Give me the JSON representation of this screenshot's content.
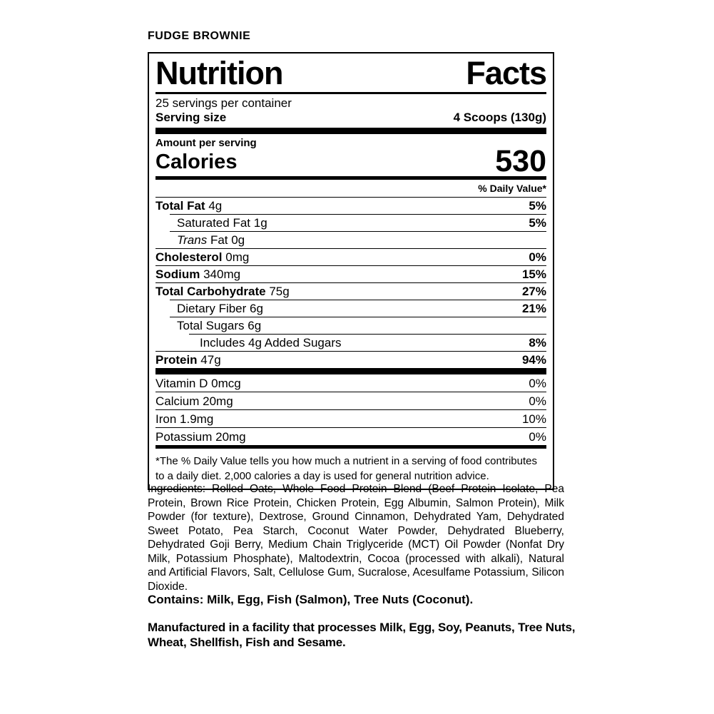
{
  "product_title": "FUDGE BROWNIE",
  "label": {
    "title": "Nutrition Facts",
    "servings_per_container": "25 servings per container",
    "serving_size_label": "Serving size",
    "serving_size_value": "4 Scoops (130g)",
    "amount_per_serving": "Amount per serving",
    "calories_label": "Calories",
    "calories_value": "530",
    "daily_value_header": "% Daily Value*",
    "nutrients": [
      {
        "name": "Total Fat",
        "amount": "4g",
        "dv": "5%"
      },
      {
        "name": "Saturated Fat",
        "amount": "1g",
        "dv": "5%"
      },
      {
        "name": "Trans",
        "amount": "Fat 0g",
        "dv": ""
      },
      {
        "name": "Cholesterol",
        "amount": "0mg",
        "dv": "0%"
      },
      {
        "name": "Sodium",
        "amount": "340mg",
        "dv": "15%"
      },
      {
        "name": "Total Carbohydrate",
        "amount": "75g",
        "dv": "27%"
      },
      {
        "name": "Dietary Fiber",
        "amount": "6g",
        "dv": "21%"
      },
      {
        "name": "Total Sugars",
        "amount": "6g",
        "dv": ""
      },
      {
        "name": "Includes 4g Added Sugars",
        "amount": "",
        "dv": "8%"
      },
      {
        "name": "Protein",
        "amount": "47g",
        "dv": "94%"
      }
    ],
    "micronutrients": [
      {
        "name": "Vitamin D",
        "amount": "0mcg",
        "dv": "0%"
      },
      {
        "name": "Calcium",
        "amount": "20mg",
        "dv": "0%"
      },
      {
        "name": "Iron",
        "amount": "1.9mg",
        "dv": "10%"
      },
      {
        "name": "Potassium",
        "amount": "20mg",
        "dv": "0%"
      }
    ],
    "footnote": "*The % Daily Value tells you how much a nutrient in a serving of food contributes to a daily diet. 2,000 calories a day is used for general nutrition advice."
  },
  "ingredients": "Ingredients: Rolled Oats, Whole Food Protein Blend (Beef Protein Isolate, Pea Protein, Brown Rice Protein, Chicken Protein, Egg Albumin, Salmon Protein), Milk Powder (for texture), Dextrose, Ground Cinnamon, Dehydrated Yam, Dehydrated Sweet Potato, Pea Starch, Coconut Water Powder, Dehydrated Blueberry, Dehydrated Goji Berry, Medium Chain Triglyceride (MCT) Oil Powder (Nonfat Dry Milk, Potassium Phosphate), Maltodextrin, Cocoa (processed with alkali), Natural and Artificial Flavors, Salt, Cellulose Gum, Sucralose, Acesulfame Potassium, Silicon Dioxide.",
  "contains": "Contains: Milk, Egg, Fish (Salmon), Tree Nuts (Coconut).",
  "facility": "Manufactured in a facility that processes Milk, Egg, Soy, Peanuts, Tree Nuts, Wheat, Shellfish, Fish and Sesame."
}
